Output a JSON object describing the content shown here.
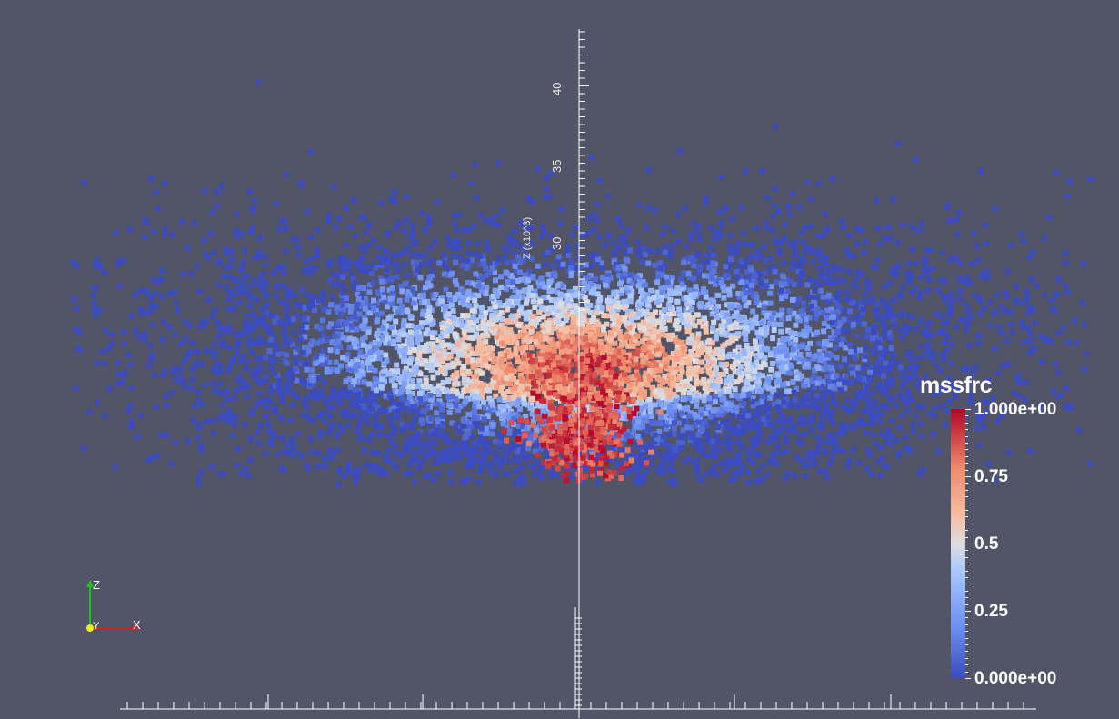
{
  "legend": {
    "title": "mssfrc",
    "labels": [
      "1.000e+00",
      "0.75",
      "0.5",
      "0.25",
      "0.000e+00"
    ],
    "colormap": [
      "#3b4cc0",
      "#6f92f3",
      "#aac7fd",
      "#dddddd",
      "#f7b89c",
      "#f08a6b",
      "#b40426"
    ]
  },
  "cube_axes": {
    "z_tick_labels": [
      "40",
      "35",
      "30"
    ],
    "z_axis_title": "Z (x10^3)"
  },
  "orientation_axes": {
    "x_label": "X",
    "y_label": "Y",
    "z_label": "Z",
    "x_color": "#d42020",
    "y_color": "#f0f000",
    "z_color": "#20c020"
  },
  "background_color": "#525468"
}
